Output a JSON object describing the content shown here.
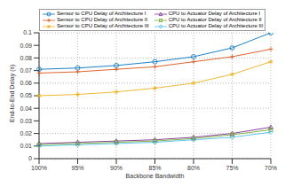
{
  "chart_data": {
    "type": "line",
    "x_label": "Backbone Bandwidth",
    "y_label": "End-to-End Delay (s)",
    "categories": [
      "100%",
      "95%",
      "90%",
      "85%",
      "80%",
      "75%",
      "70%"
    ],
    "ylim": [
      0,
      0.1
    ],
    "yticks": [
      0,
      0.01,
      0.02,
      0.03,
      0.04,
      0.05,
      0.06,
      0.07,
      0.08,
      0.09,
      0.1
    ],
    "grid": true,
    "legend": "top",
    "series": [
      {
        "name": "Sensor to CPU Delay of Architecture I",
        "color": "#0072bd",
        "marker": "circle",
        "values": [
          0.071,
          0.072,
          0.074,
          0.077,
          0.081,
          0.088,
          0.1
        ]
      },
      {
        "name": "Sensor to CPU Delay of Architecture II",
        "color": "#d95319",
        "marker": "plus",
        "values": [
          0.068,
          0.069,
          0.071,
          0.073,
          0.077,
          0.081,
          0.087
        ]
      },
      {
        "name": "Sensor to CPU Delay of Architecture III",
        "color": "#edb120",
        "marker": "star",
        "values": [
          0.05,
          0.051,
          0.053,
          0.056,
          0.06,
          0.067,
          0.077
        ]
      },
      {
        "name": "CPU to Actuator Delay of Architecture I",
        "color": "#7e2f8e",
        "marker": "triangle",
        "values": [
          0.012,
          0.013,
          0.014,
          0.015,
          0.017,
          0.02,
          0.025
        ]
      },
      {
        "name": "CPU to Actuator Delay of Architecture II",
        "color": "#77ac30",
        "marker": "square",
        "values": [
          0.011,
          0.012,
          0.013,
          0.014,
          0.016,
          0.019,
          0.023
        ]
      },
      {
        "name": "CPU to Actuator Delay of Architecture III",
        "color": "#4dbeee",
        "marker": "diamond",
        "values": [
          0.01,
          0.011,
          0.012,
          0.013,
          0.015,
          0.017,
          0.021
        ]
      }
    ]
  }
}
